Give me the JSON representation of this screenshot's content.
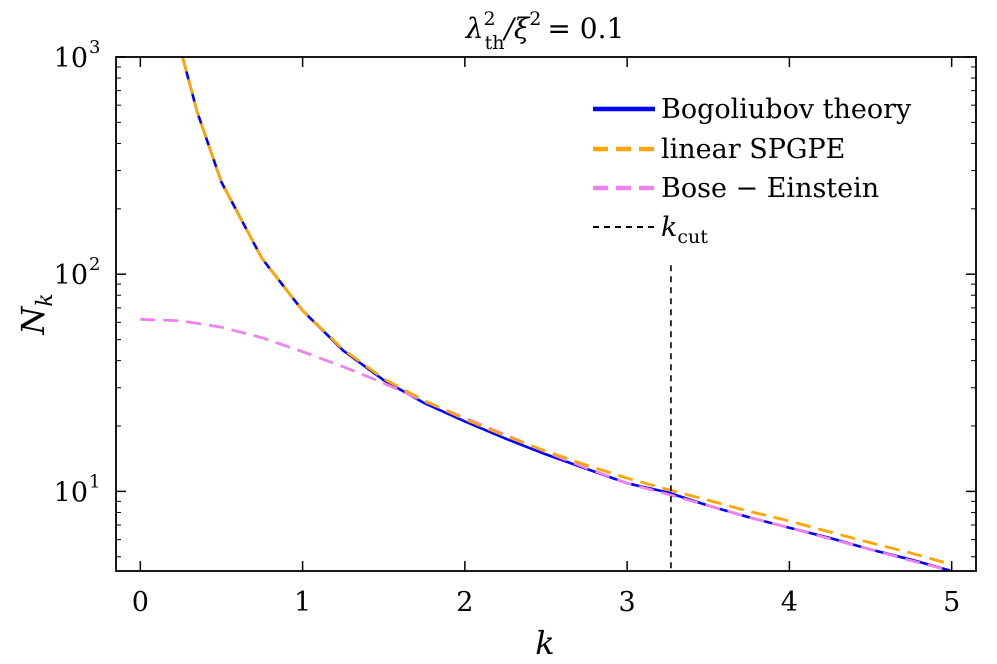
{
  "chart_data": {
    "type": "line",
    "title": "λ²_th/ξ² = 0.1",
    "title_parts": {
      "symbol": "λ",
      "sup": "2",
      "sub": "th",
      "rest": "/ξ",
      "rest_sup": "2",
      "equals": "= 0.1"
    },
    "xlabel": "k",
    "ylabel": "N",
    "ylabel_sub": "k",
    "xlim": [
      -0.15,
      5.15
    ],
    "ylim": [
      4.3,
      1000
    ],
    "y_scale": "log",
    "x_ticks": [
      0,
      1,
      2,
      3,
      4,
      5
    ],
    "x_tick_labels": [
      "0",
      "1",
      "2",
      "3",
      "4",
      "5"
    ],
    "y_ticks": [
      {
        "value": 10,
        "base": "10",
        "exp": "1"
      },
      {
        "value": 100,
        "base": "10",
        "exp": "2"
      },
      {
        "value": 1000,
        "base": "10",
        "exp": "3"
      }
    ],
    "grid": false,
    "legend_position": "top-right",
    "vline": {
      "x": 3.27,
      "y_top": 110,
      "label": "k",
      "label_sub": "cut"
    },
    "series": [
      {
        "name": "Bogoliubov theory",
        "color": "#0000ff",
        "style": "solid",
        "x": [
          0.26,
          0.35,
          0.5,
          0.75,
          1.0,
          1.25,
          1.5,
          1.75,
          2.0,
          2.25,
          2.5,
          2.75,
          3.0,
          3.25,
          3.5,
          3.75,
          4.0,
          4.25,
          4.5,
          4.75,
          5.0
        ],
        "y": [
          1000,
          560,
          265,
          118,
          68,
          44.5,
          32.5,
          25.5,
          21,
          17.5,
          14.8,
          12.7,
          10.9,
          9.9,
          8.6,
          7.6,
          6.8,
          6.1,
          5.4,
          4.85,
          4.3
        ]
      },
      {
        "name": "linear SPGPE",
        "color": "#ffa500",
        "style": "dashed",
        "x": [
          0.26,
          0.35,
          0.5,
          0.75,
          1.0,
          1.25,
          1.5,
          1.75,
          2.0,
          2.25,
          2.5,
          2.75,
          3.0,
          3.25,
          3.5,
          3.75,
          4.0,
          4.25,
          4.5,
          4.75,
          5.0
        ],
        "y": [
          1000,
          560,
          265,
          118,
          68,
          45,
          33,
          26.2,
          21.5,
          18,
          15.3,
          13.2,
          11.5,
          10.2,
          9.1,
          8.1,
          7.3,
          6.5,
          5.8,
          5.2,
          4.6
        ]
      },
      {
        "name": "Bose − Einstein",
        "color": "#ee82ee",
        "style": "dashed",
        "x": [
          0.0,
          0.25,
          0.5,
          0.75,
          1.0,
          1.25,
          1.5,
          1.75,
          2.0,
          2.25,
          2.5,
          2.75,
          3.0,
          3.25,
          3.5,
          3.75,
          4.0,
          4.25,
          4.5,
          4.75,
          5.0
        ],
        "y": [
          62,
          61,
          57,
          51,
          44,
          37.5,
          31.5,
          26,
          21.8,
          18.2,
          15.2,
          12.8,
          10.9,
          9.7,
          8.6,
          7.6,
          6.8,
          6.05,
          5.4,
          4.8,
          4.3
        ]
      }
    ]
  }
}
